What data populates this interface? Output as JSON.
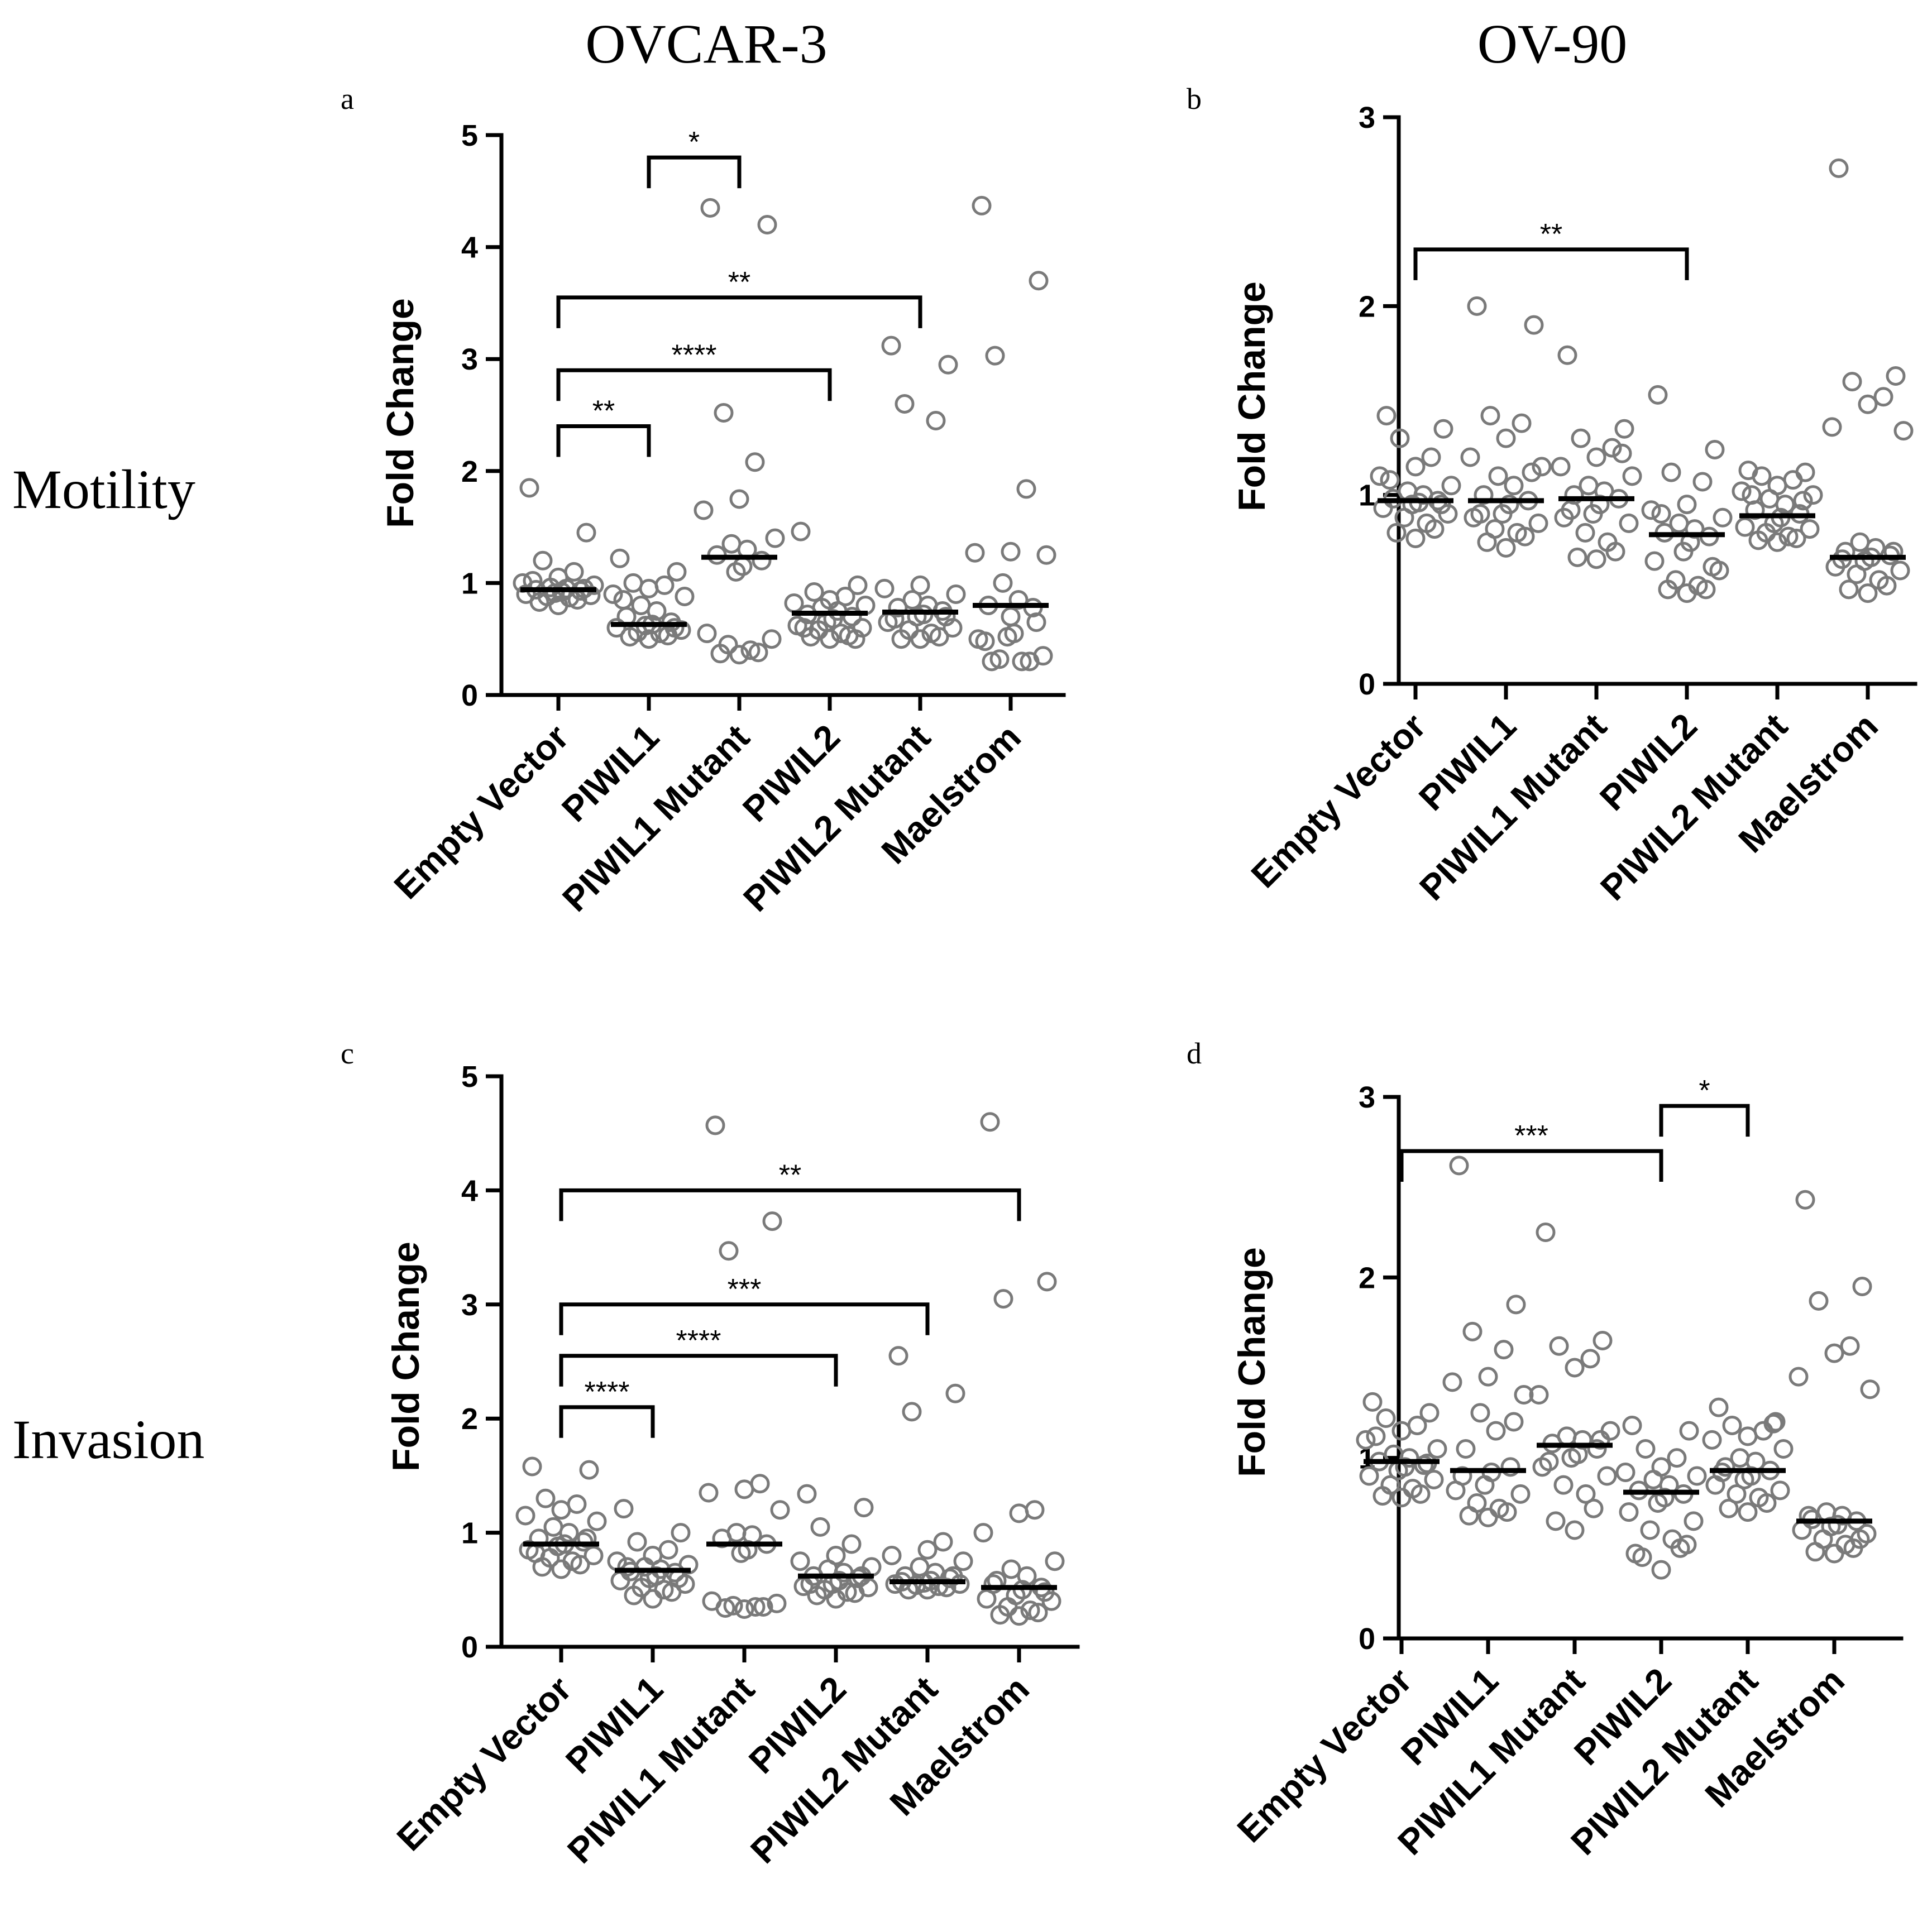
{
  "figure": {
    "column_titles": [
      "OVCAR-3",
      "OV-90"
    ],
    "row_labels": [
      "Motility",
      "Invasion"
    ]
  },
  "chart_data": [
    {
      "panel": "a",
      "type": "scatter",
      "title": "",
      "ylabel": "Fold Change",
      "ylim": [
        0,
        5
      ],
      "yticks": [
        0,
        1,
        2,
        3,
        4,
        5
      ],
      "categories": [
        "Empty Vector",
        "PIWIL1",
        "PIWIL1 Mutant",
        "PIWIL2",
        "PIWIL2 Mutant",
        "Maelstrom"
      ],
      "medians": [
        0.94,
        0.63,
        1.23,
        0.73,
        0.74,
        0.8
      ],
      "series": [
        {
          "name": "Empty Vector",
          "values": [
            1.85,
            1.45,
            1.2,
            1.1,
            1.05,
            1.0,
            0.98,
            0.96,
            0.95,
            0.94,
            0.93,
            0.92,
            0.91,
            0.9,
            0.89,
            0.88,
            0.87,
            0.85,
            0.83,
            0.8,
            0.95,
            1.02
          ]
        },
        {
          "name": "PIWIL1",
          "values": [
            1.22,
            1.1,
            1.0,
            0.98,
            0.95,
            0.9,
            0.88,
            0.8,
            0.75,
            0.7,
            0.65,
            0.63,
            0.62,
            0.6,
            0.58,
            0.56,
            0.55,
            0.53,
            0.52,
            0.5,
            0.6,
            0.85
          ]
        },
        {
          "name": "PIWIL1 Mutant",
          "values": [
            4.35,
            4.2,
            2.52,
            2.08,
            1.75,
            1.65,
            1.4,
            1.35,
            1.3,
            1.25,
            1.2,
            1.15,
            1.1,
            0.55,
            0.5,
            0.45,
            0.4,
            0.38,
            0.37,
            0.36
          ]
        },
        {
          "name": "PIWIL2",
          "values": [
            1.46,
            0.98,
            0.92,
            0.88,
            0.85,
            0.82,
            0.8,
            0.78,
            0.75,
            0.72,
            0.7,
            0.68,
            0.65,
            0.62,
            0.6,
            0.58,
            0.55,
            0.53,
            0.52,
            0.5,
            0.5,
            0.6
          ]
        },
        {
          "name": "PIWIL2 Mutant",
          "values": [
            3.12,
            2.95,
            2.6,
            2.45,
            0.98,
            0.95,
            0.9,
            0.85,
            0.8,
            0.78,
            0.75,
            0.72,
            0.7,
            0.65,
            0.6,
            0.58,
            0.55,
            0.52,
            0.5,
            0.5,
            0.7,
            0.68
          ]
        },
        {
          "name": "Maelstrom",
          "values": [
            4.37,
            3.7,
            3.03,
            1.84,
            1.28,
            1.27,
            1.25,
            1.0,
            0.85,
            0.8,
            0.78,
            0.55,
            0.52,
            0.5,
            0.35,
            0.32,
            0.3,
            0.3,
            0.3,
            0.7,
            0.65,
            0.48
          ]
        }
      ],
      "comparisons": [
        {
          "from": "PIWIL1",
          "to": "PIWIL1 Mutant",
          "label": "*",
          "y": 4.8
        },
        {
          "from": "Empty Vector",
          "to": "PIWIL2 Mutant",
          "label": "**",
          "y": 3.55
        },
        {
          "from": "Empty Vector",
          "to": "PIWIL2",
          "label": "****",
          "y": 2.9
        },
        {
          "from": "Empty Vector",
          "to": "PIWIL1",
          "label": "**",
          "y": 2.4
        }
      ]
    },
    {
      "panel": "b",
      "type": "scatter",
      "title": "",
      "ylabel": "Fold Change",
      "ylim": [
        0,
        3
      ],
      "yticks": [
        0,
        1,
        2,
        3
      ],
      "categories": [
        "Empty Vector",
        "PIWIL1",
        "PIWIL1 Mutant",
        "PIWIL2",
        "PIWIL2 Mutant",
        "Maelstrom"
      ],
      "medians": [
        0.97,
        0.97,
        0.98,
        0.79,
        0.89,
        0.67
      ],
      "series": [
        {
          "name": "Empty Vector",
          "values": [
            1.42,
            1.35,
            1.3,
            1.2,
            1.15,
            1.1,
            1.05,
            1.02,
            1.0,
            0.98,
            0.97,
            0.96,
            0.95,
            0.93,
            0.9,
            0.88,
            0.85,
            0.82,
            0.8,
            0.77,
            0.95,
            1.08
          ]
        },
        {
          "name": "PIWIL1",
          "values": [
            2.0,
            1.9,
            1.42,
            1.38,
            1.3,
            1.2,
            1.15,
            1.1,
            1.05,
            1.0,
            0.97,
            0.95,
            0.9,
            0.88,
            0.85,
            0.82,
            0.8,
            0.78,
            0.75,
            0.72,
            1.12,
            0.9
          ]
        },
        {
          "name": "PIWIL1 Mutant",
          "values": [
            1.74,
            1.35,
            1.3,
            1.25,
            1.2,
            1.15,
            1.1,
            1.05,
            1.02,
            1.0,
            0.98,
            0.95,
            0.9,
            0.88,
            0.85,
            0.8,
            0.75,
            0.7,
            0.67,
            0.66,
            1.22,
            0.92
          ]
        },
        {
          "name": "PIWIL2",
          "values": [
            1.53,
            1.24,
            1.12,
            1.07,
            0.95,
            0.92,
            0.88,
            0.85,
            0.82,
            0.8,
            0.78,
            0.75,
            0.7,
            0.65,
            0.6,
            0.55,
            0.52,
            0.5,
            0.5,
            0.48,
            0.62,
            0.9
          ]
        },
        {
          "name": "PIWIL2 Mutant",
          "values": [
            1.13,
            1.12,
            1.1,
            1.08,
            1.05,
            1.02,
            1.0,
            0.98,
            0.95,
            0.92,
            0.9,
            0.88,
            0.85,
            0.83,
            0.82,
            0.8,
            0.78,
            0.77,
            0.76,
            0.75,
            0.97,
            1.0
          ]
        },
        {
          "name": "Maelstrom",
          "values": [
            2.73,
            1.63,
            1.6,
            1.52,
            1.48,
            1.36,
            1.34,
            0.75,
            0.72,
            0.7,
            0.68,
            0.67,
            0.65,
            0.62,
            0.6,
            0.58,
            0.55,
            0.52,
            0.5,
            0.48,
            0.7,
            0.66
          ]
        }
      ],
      "comparisons": [
        {
          "from": "Empty Vector",
          "to": "PIWIL2",
          "label": "**",
          "y": 2.3
        }
      ]
    },
    {
      "panel": "c",
      "type": "scatter",
      "title": "",
      "ylabel": "Fold Change",
      "ylim": [
        0,
        5
      ],
      "yticks": [
        0,
        1,
        2,
        3,
        4,
        5
      ],
      "categories": [
        "Empty Vector",
        "PIWIL1",
        "PIWIL1 Mutant",
        "PIWIL2",
        "PIWIL2 Mutant",
        "Maelstrom"
      ],
      "medians": [
        0.9,
        0.67,
        0.9,
        0.62,
        0.57,
        0.52
      ],
      "series": [
        {
          "name": "Empty Vector",
          "values": [
            1.58,
            1.55,
            1.3,
            1.25,
            1.2,
            1.15,
            1.1,
            1.05,
            1.0,
            0.95,
            0.92,
            0.9,
            0.88,
            0.85,
            0.8,
            0.78,
            0.75,
            0.72,
            0.7,
            0.68,
            0.95,
            0.82
          ]
        },
        {
          "name": "PIWIL1",
          "values": [
            1.21,
            1.0,
            0.92,
            0.85,
            0.8,
            0.75,
            0.72,
            0.7,
            0.68,
            0.66,
            0.65,
            0.62,
            0.6,
            0.58,
            0.55,
            0.52,
            0.5,
            0.48,
            0.45,
            0.42,
            0.6,
            0.7
          ]
        },
        {
          "name": "PIWIL1 Mutant",
          "values": [
            4.57,
            3.73,
            3.47,
            1.43,
            1.38,
            1.35,
            1.2,
            1.0,
            0.98,
            0.95,
            0.9,
            0.85,
            0.82,
            0.4,
            0.38,
            0.36,
            0.35,
            0.35,
            0.34,
            0.33
          ]
        },
        {
          "name": "PIWIL2",
          "values": [
            1.34,
            1.22,
            1.05,
            0.9,
            0.8,
            0.75,
            0.7,
            0.68,
            0.65,
            0.62,
            0.6,
            0.58,
            0.55,
            0.53,
            0.52,
            0.5,
            0.48,
            0.47,
            0.45,
            0.42,
            0.62,
            0.55
          ]
        },
        {
          "name": "PIWIL2 Mutant",
          "values": [
            2.55,
            2.22,
            2.06,
            0.92,
            0.85,
            0.8,
            0.75,
            0.7,
            0.65,
            0.62,
            0.6,
            0.58,
            0.56,
            0.55,
            0.55,
            0.54,
            0.53,
            0.52,
            0.5,
            0.5,
            0.62,
            0.57
          ]
        },
        {
          "name": "Maelstrom",
          "values": [
            4.6,
            3.2,
            3.05,
            1.2,
            1.17,
            1.0,
            0.75,
            0.68,
            0.62,
            0.58,
            0.52,
            0.5,
            0.45,
            0.42,
            0.4,
            0.35,
            0.32,
            0.3,
            0.28,
            0.27,
            0.48,
            0.55
          ]
        }
      ],
      "comparisons": [
        {
          "from": "Empty Vector",
          "to": "Maelstrom",
          "label": "**",
          "y": 4.0
        },
        {
          "from": "Empty Vector",
          "to": "PIWIL2 Mutant",
          "label": "***",
          "y": 3.0
        },
        {
          "from": "Empty Vector",
          "to": "PIWIL2",
          "label": "****",
          "y": 2.55
        },
        {
          "from": "Empty Vector",
          "to": "PIWIL1",
          "label": "****",
          "y": 2.1
        }
      ]
    },
    {
      "panel": "d",
      "type": "scatter",
      "title": "",
      "ylabel": "Fold Change",
      "ylim": [
        0,
        3
      ],
      "yticks": [
        0,
        1,
        2,
        3
      ],
      "categories": [
        "Empty Vector",
        "PIWIL1",
        "PIWIL1 Mutant",
        "PIWIL2",
        "PIWIL2 Mutant",
        "Maelstrom"
      ],
      "medians": [
        0.98,
        0.93,
        1.07,
        0.81,
        0.93,
        0.65
      ],
      "series": [
        {
          "name": "Empty Vector",
          "values": [
            1.31,
            1.25,
            1.22,
            1.18,
            1.15,
            1.1,
            1.05,
            1.02,
            1.0,
            0.98,
            0.96,
            0.95,
            0.93,
            0.9,
            0.88,
            0.85,
            0.83,
            0.8,
            0.79,
            0.78,
            0.97,
            1.12
          ]
        },
        {
          "name": "PIWIL1",
          "values": [
            2.62,
            1.85,
            1.7,
            1.6,
            1.45,
            1.42,
            1.35,
            1.25,
            1.15,
            1.05,
            0.95,
            0.92,
            0.85,
            0.82,
            0.8,
            0.75,
            0.72,
            0.7,
            0.68,
            0.67,
            1.2,
            0.9
          ]
        },
        {
          "name": "PIWIL1 Mutant",
          "values": [
            2.25,
            1.65,
            1.62,
            1.55,
            1.5,
            1.35,
            1.15,
            1.12,
            1.1,
            1.08,
            1.05,
            1.02,
            1.0,
            0.95,
            0.9,
            0.85,
            0.8,
            0.72,
            0.65,
            0.6,
            1.1,
            0.98
          ]
        },
        {
          "name": "PIWIL2",
          "values": [
            1.18,
            1.15,
            1.05,
            1.0,
            0.95,
            0.92,
            0.9,
            0.88,
            0.85,
            0.82,
            0.8,
            0.78,
            0.75,
            0.7,
            0.65,
            0.6,
            0.55,
            0.5,
            0.45,
            0.38,
            0.52,
            0.47
          ]
        },
        {
          "name": "PIWIL2 Mutant",
          "values": [
            1.28,
            1.2,
            1.18,
            1.15,
            1.12,
            1.1,
            1.05,
            1.0,
            0.98,
            0.95,
            0.93,
            0.9,
            0.88,
            0.85,
            0.82,
            0.8,
            0.78,
            0.75,
            0.72,
            0.7,
            1.19,
            0.92
          ]
        },
        {
          "name": "Maelstrom",
          "values": [
            2.43,
            1.95,
            1.87,
            1.62,
            1.58,
            1.45,
            1.38,
            0.7,
            0.68,
            0.66,
            0.65,
            0.63,
            0.62,
            0.6,
            0.58,
            0.55,
            0.52,
            0.5,
            0.48,
            0.47,
            0.55,
            0.68
          ]
        }
      ],
      "comparisons": [
        {
          "from": "PIWIL2",
          "to": "PIWIL2 Mutant",
          "label": "*",
          "y": 2.95
        },
        {
          "from": "Empty Vector",
          "to": "PIWIL2",
          "label": "***",
          "y": 2.7
        }
      ]
    }
  ]
}
